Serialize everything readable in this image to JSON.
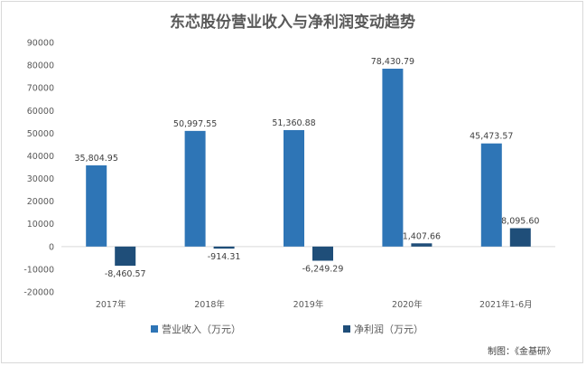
{
  "chart_data": {
    "type": "bar",
    "title": "东芯股份营业收入与净利润变动趋势",
    "categories": [
      "2017年",
      "2018年",
      "2019年",
      "2020年",
      "2021年1-6月"
    ],
    "series": [
      {
        "name": "营业收入（万元）",
        "color": "#2e75b6",
        "values": [
          35804.95,
          50997.55,
          51360.88,
          78430.79,
          45473.57
        ],
        "labels": [
          "35,804.95",
          "50,997.55",
          "51,360.88",
          "78,430.79",
          "45,473.57"
        ]
      },
      {
        "name": "净利润（万元）",
        "color": "#1f4e79",
        "values": [
          -8460.57,
          -914.31,
          -6249.29,
          1407.66,
          8095.6
        ],
        "labels": [
          "-8,460.57",
          "-914.31",
          "-6,249.29",
          "1,407.66",
          "8,095.60"
        ]
      }
    ],
    "ylim": [
      -20000,
      90000
    ],
    "yticks": [
      -20000,
      -10000,
      0,
      10000,
      20000,
      30000,
      40000,
      50000,
      60000,
      70000,
      80000,
      90000
    ],
    "xlabel": "",
    "ylabel": "",
    "grid": false,
    "legend": "bottom"
  },
  "credit": "制图：《金基研》"
}
